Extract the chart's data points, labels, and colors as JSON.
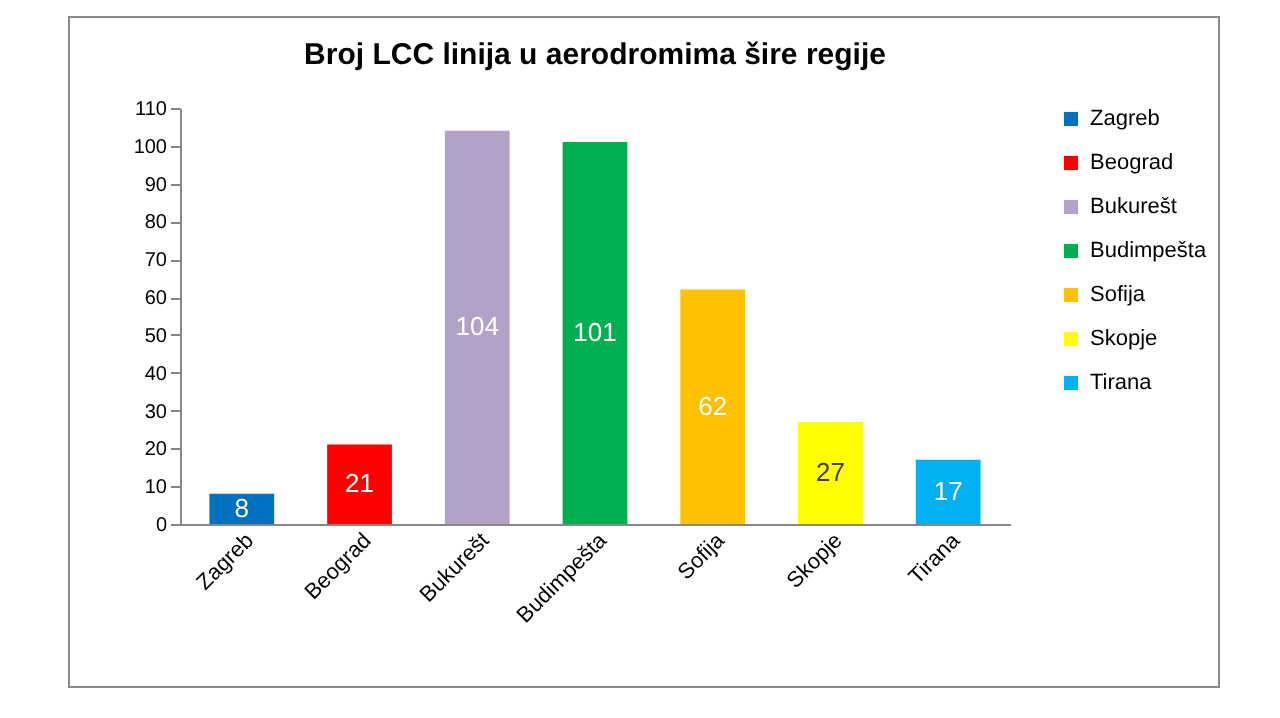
{
  "chart_data": {
    "type": "bar",
    "title": "Broj LCC linija u aerodromima šire regije",
    "categories": [
      "Zagreb",
      "Beograd",
      "Bukurešt",
      "Budimpešta",
      "Sofija",
      "Skopje",
      "Tirana"
    ],
    "series": [
      {
        "name": "Zagreb",
        "color": "#0070c0",
        "values": [
          8,
          null,
          null,
          null,
          null,
          null,
          null
        ]
      },
      {
        "name": "Beograd",
        "color": "#ff0000",
        "values": [
          null,
          21,
          null,
          null,
          null,
          null,
          null
        ]
      },
      {
        "name": "Bukurešt",
        "color": "#b3a2c7",
        "values": [
          null,
          null,
          104,
          null,
          null,
          null,
          null
        ]
      },
      {
        "name": "Budimpešta",
        "color": "#00b050",
        "values": [
          null,
          null,
          null,
          101,
          null,
          null,
          null
        ]
      },
      {
        "name": "Sofija",
        "color": "#ffc000",
        "values": [
          null,
          null,
          null,
          null,
          62,
          null,
          null
        ]
      },
      {
        "name": "Skopje",
        "color": "#ffff00",
        "values": [
          null,
          null,
          null,
          null,
          null,
          27,
          null
        ]
      },
      {
        "name": "Tirana",
        "color": "#00b0f0",
        "values": [
          null,
          null,
          null,
          null,
          null,
          null,
          17
        ]
      }
    ],
    "ylim": [
      0,
      110
    ],
    "yticks": [
      0,
      10,
      20,
      30,
      40,
      50,
      60,
      70,
      80,
      90,
      100,
      110
    ],
    "data_labels": true,
    "legend": "right",
    "grid": false
  }
}
